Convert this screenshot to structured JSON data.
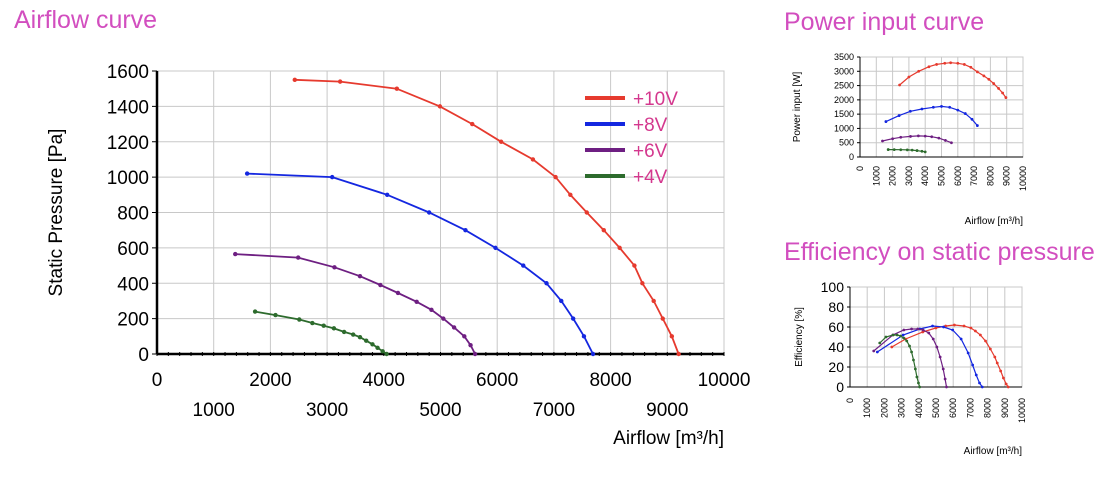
{
  "titles": {
    "airflow_curve": "Airflow curve",
    "power_input_curve": "Power input curve",
    "efficiency": "Efficiency on static pressure"
  },
  "colors": {
    "title": "#d24ebf",
    "legend_text": "#d4388e",
    "v10": "#e63a2e",
    "v8": "#1427e0",
    "v6": "#6e1f82",
    "v4": "#2d6b2d",
    "grid": "#c8c8c8"
  },
  "chart_data": [
    {
      "type": "line",
      "title": "Airflow curve",
      "xlabel": "Airflow [m³/h]",
      "ylabel": "Static Pressure [Pa]",
      "xlim": [
        0,
        10000
      ],
      "ylim": [
        0,
        1600
      ],
      "x_ticks_upper": [
        "0",
        "2000",
        "4000",
        "6000",
        "8000",
        "10000"
      ],
      "x_ticks_lower": [
        "1000",
        "3000",
        "5000",
        "7000",
        "9000"
      ],
      "y_ticks": [
        "0",
        "200",
        "400",
        "600",
        "800",
        "1000",
        "1200",
        "1400",
        "1600"
      ],
      "grid": true,
      "legend_position": "top-right",
      "series": [
        {
          "name": "+10V",
          "color": "#e63a2e",
          "points": [
            [
              2430,
              1550
            ],
            [
              3230,
              1540
            ],
            [
              4230,
              1500
            ],
            [
              4990,
              1400
            ],
            [
              5560,
              1300
            ],
            [
              6070,
              1200
            ],
            [
              6630,
              1100
            ],
            [
              7030,
              1000
            ],
            [
              7290,
              900
            ],
            [
              7580,
              800
            ],
            [
              7880,
              700
            ],
            [
              8160,
              600
            ],
            [
              8420,
              500
            ],
            [
              8560,
              400
            ],
            [
              8760,
              300
            ],
            [
              8920,
              200
            ],
            [
              9080,
              100
            ],
            [
              9200,
              0
            ]
          ]
        },
        {
          "name": "+8V",
          "color": "#1427e0",
          "points": [
            [
              1590,
              1020
            ],
            [
              3090,
              1000
            ],
            [
              4060,
              900
            ],
            [
              4800,
              800
            ],
            [
              5440,
              700
            ],
            [
              5970,
              600
            ],
            [
              6460,
              500
            ],
            [
              6870,
              400
            ],
            [
              7130,
              300
            ],
            [
              7340,
              200
            ],
            [
              7530,
              100
            ],
            [
              7690,
              0
            ]
          ]
        },
        {
          "name": "+6V",
          "color": "#6e1f82",
          "points": [
            [
              1380,
              565
            ],
            [
              2490,
              545
            ],
            [
              3130,
              490
            ],
            [
              3580,
              440
            ],
            [
              3940,
              390
            ],
            [
              4250,
              345
            ],
            [
              4580,
              295
            ],
            [
              4840,
              250
            ],
            [
              5050,
              200
            ],
            [
              5240,
              150
            ],
            [
              5420,
              100
            ],
            [
              5530,
              50
            ],
            [
              5610,
              0
            ]
          ]
        },
        {
          "name": "+4V",
          "color": "#2d6b2d",
          "points": [
            [
              1730,
              240
            ],
            [
              2090,
              220
            ],
            [
              2510,
              195
            ],
            [
              2740,
              175
            ],
            [
              2940,
              160
            ],
            [
              3120,
              145
            ],
            [
              3300,
              125
            ],
            [
              3460,
              110
            ],
            [
              3580,
              95
            ],
            [
              3690,
              75
            ],
            [
              3800,
              55
            ],
            [
              3890,
              35
            ],
            [
              3980,
              15
            ],
            [
              4050,
              0
            ]
          ]
        }
      ]
    },
    {
      "type": "line",
      "title": "Power input curve",
      "xlabel": "Airflow [m³/h]",
      "ylabel": "Power input [W]",
      "xlim": [
        0,
        10000
      ],
      "ylim": [
        0,
        3500
      ],
      "x_ticks": [
        "0",
        "1000",
        "2000",
        "3000",
        "4000",
        "5000",
        "6000",
        "7000",
        "8000",
        "9000",
        "10000"
      ],
      "y_ticks": [
        "0",
        "500",
        "1000",
        "1500",
        "2000",
        "2500",
        "3000",
        "3500"
      ],
      "grid": true,
      "series": [
        {
          "name": "+10V",
          "color": "#e63a2e",
          "points": [
            [
              2430,
              2520
            ],
            [
              3000,
              2800
            ],
            [
              3600,
              3000
            ],
            [
              4230,
              3160
            ],
            [
              4700,
              3240
            ],
            [
              5200,
              3280
            ],
            [
              5560,
              3300
            ],
            [
              6000,
              3280
            ],
            [
              6400,
              3240
            ],
            [
              6800,
              3140
            ],
            [
              7200,
              2980
            ],
            [
              7600,
              2840
            ],
            [
              7900,
              2720
            ],
            [
              8200,
              2570
            ],
            [
              8500,
              2400
            ],
            [
              8750,
              2240
            ],
            [
              8950,
              2080
            ]
          ]
        },
        {
          "name": "+8V",
          "color": "#1427e0",
          "points": [
            [
              1590,
              1240
            ],
            [
              2400,
              1450
            ],
            [
              3090,
              1600
            ],
            [
              3800,
              1680
            ],
            [
              4500,
              1740
            ],
            [
              5000,
              1770
            ],
            [
              5500,
              1740
            ],
            [
              6000,
              1640
            ],
            [
              6460,
              1520
            ],
            [
              6870,
              1320
            ],
            [
              7200,
              1100
            ]
          ]
        },
        {
          "name": "+6V",
          "color": "#6e1f82",
          "points": [
            [
              1380,
              560
            ],
            [
              2000,
              640
            ],
            [
              2500,
              690
            ],
            [
              3100,
              720
            ],
            [
              3580,
              740
            ],
            [
              4000,
              730
            ],
            [
              4400,
              710
            ],
            [
              4840,
              660
            ],
            [
              5240,
              580
            ],
            [
              5610,
              500
            ]
          ]
        },
        {
          "name": "+4V",
          "color": "#2d6b2d",
          "points": [
            [
              1730,
              260
            ],
            [
              2100,
              258
            ],
            [
              2500,
              255
            ],
            [
              2900,
              250
            ],
            [
              3200,
              240
            ],
            [
              3500,
              225
            ],
            [
              3800,
              200
            ],
            [
              4000,
              180
            ]
          ]
        }
      ]
    },
    {
      "type": "line",
      "title": "Efficiency on static pressure",
      "xlabel": "Airflow [m³/h]",
      "ylabel": "Efficiency [%]",
      "xlim": [
        0,
        10000
      ],
      "ylim": [
        0,
        100
      ],
      "x_ticks": [
        "0",
        "1000",
        "2000",
        "3000",
        "4000",
        "5000",
        "6000",
        "7000",
        "8000",
        "9000",
        "10000"
      ],
      "y_ticks": [
        "0",
        "20",
        "40",
        "60",
        "80",
        "100"
      ],
      "grid": true,
      "series": [
        {
          "name": "+10V",
          "color": "#e63a2e",
          "points": [
            [
              2430,
              40
            ],
            [
              3230,
              48
            ],
            [
              4230,
              55
            ],
            [
              4990,
              59
            ],
            [
              5560,
              61
            ],
            [
              6070,
              62
            ],
            [
              6630,
              61
            ],
            [
              7030,
              59
            ],
            [
              7290,
              56
            ],
            [
              7580,
              52
            ],
            [
              7880,
              46
            ],
            [
              8160,
              38
            ],
            [
              8420,
              30
            ],
            [
              8560,
              24
            ],
            [
              8760,
              16
            ],
            [
              8920,
              9
            ],
            [
              9080,
              3
            ],
            [
              9200,
              0
            ]
          ]
        },
        {
          "name": "+8V",
          "color": "#1427e0",
          "points": [
            [
              1590,
              35
            ],
            [
              3090,
              52
            ],
            [
              4060,
              58
            ],
            [
              4800,
              61
            ],
            [
              5440,
              60
            ],
            [
              5970,
              57
            ],
            [
              6460,
              48
            ],
            [
              6870,
              34
            ],
            [
              7130,
              22
            ],
            [
              7340,
              12
            ],
            [
              7530,
              4
            ],
            [
              7690,
              0
            ]
          ]
        },
        {
          "name": "+6V",
          "color": "#6e1f82",
          "points": [
            [
              1380,
              36
            ],
            [
              2490,
              52
            ],
            [
              3130,
              57
            ],
            [
              3580,
              58
            ],
            [
              3940,
              58
            ],
            [
              4250,
              57
            ],
            [
              4580,
              54
            ],
            [
              4840,
              48
            ],
            [
              5050,
              40
            ],
            [
              5240,
              30
            ],
            [
              5420,
              18
            ],
            [
              5530,
              8
            ],
            [
              5610,
              0
            ]
          ]
        },
        {
          "name": "+4V",
          "color": "#2d6b2d",
          "points": [
            [
              1730,
              44
            ],
            [
              2090,
              50
            ],
            [
              2510,
              52
            ],
            [
              2740,
              52
            ],
            [
              2940,
              51
            ],
            [
              3120,
              49
            ],
            [
              3300,
              46
            ],
            [
              3460,
              41
            ],
            [
              3580,
              35
            ],
            [
              3690,
              27
            ],
            [
              3800,
              18
            ],
            [
              3890,
              10
            ],
            [
              3980,
              4
            ],
            [
              4050,
              0
            ]
          ]
        }
      ]
    }
  ]
}
